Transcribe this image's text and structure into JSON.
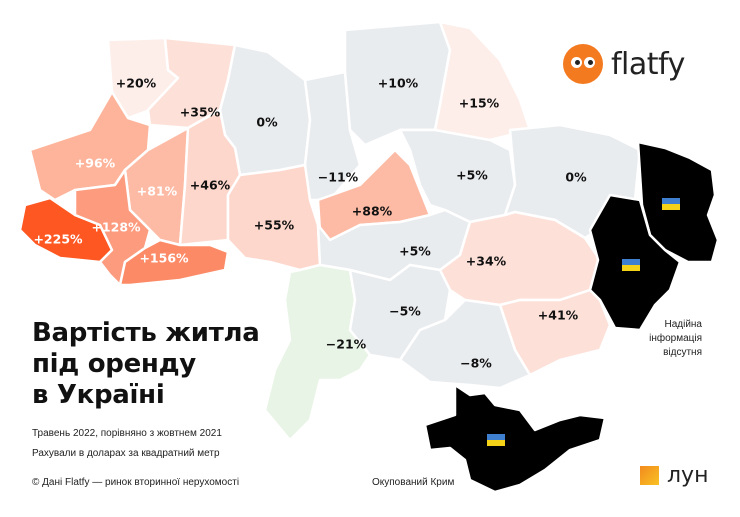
{
  "title_lines": [
    "Вартість житла",
    "під оренду",
    "в Україні"
  ],
  "subtitle_period": "Травень 2022, порівняно з жовтнем 2021",
  "subtitle_units": "Рахували в доларах за квадратний метр",
  "source": "© Дані Flatfy — ринок вторинної нерухомості",
  "no_data_note": [
    "Надійна",
    "інформація",
    "відсутня"
  ],
  "crimea_note": "Окупований Крим",
  "logos": {
    "flatfy": "flatfy",
    "lun": "лун"
  },
  "colors": {
    "neutral": "#e9ecef",
    "decrease": "#e8f4e5",
    "occupied": "#000000",
    "scale": [
      "#fdeeea",
      "#fde1d9",
      "#fdd7cc",
      "#fdbba5",
      "#fdb49b",
      "#fd9b7e",
      "#fd8a66",
      "#ff5722"
    ],
    "flag_blue": "#3f7fd0",
    "flag_yellow": "#f4d218"
  },
  "regions": [
    {
      "value": "+20%",
      "color": "#fdeeea"
    },
    {
      "value": "+35%",
      "color": "#fde1d9"
    },
    {
      "value": "0%",
      "color": "#e9ecef"
    },
    {
      "value": "−11%",
      "color": "#e9ecef"
    },
    {
      "value": "+10%",
      "color": "#e9ecef"
    },
    {
      "value": "+15%",
      "color": "#fdeeea"
    },
    {
      "value": "+96%",
      "color": "#fdb49b"
    },
    {
      "value": "+81%",
      "color": "#fdbba5"
    },
    {
      "value": "+46%",
      "color": "#fdd7cc"
    },
    {
      "value": "+55%",
      "color": "#fdd7cc"
    },
    {
      "value": "+88%",
      "color": "#fdbba5"
    },
    {
      "value": "+5%",
      "color": "#e9ecef"
    },
    {
      "value": "0%",
      "color": "#e9ecef"
    },
    {
      "value": "+225%",
      "color": "#ff5722"
    },
    {
      "value": "+128%",
      "color": "#fd9b7e"
    },
    {
      "value": "+156%",
      "color": "#fd8a66"
    },
    {
      "value": "+5%",
      "color": "#e9ecef"
    },
    {
      "value": "+34%",
      "color": "#fde1d9"
    },
    {
      "value": "−21%",
      "color": "#e8f4e5"
    },
    {
      "value": "−5%",
      "color": "#e9ecef"
    },
    {
      "value": "+41%",
      "color": "#fde1d9"
    },
    {
      "value": "−8%",
      "color": "#e9ecef"
    }
  ],
  "occupied": [
    {
      "flag": "ukraine-flag-icon"
    },
    {
      "flag": "ukraine-flag-icon"
    },
    {
      "flag": "ukraine-flag-icon"
    }
  ]
}
